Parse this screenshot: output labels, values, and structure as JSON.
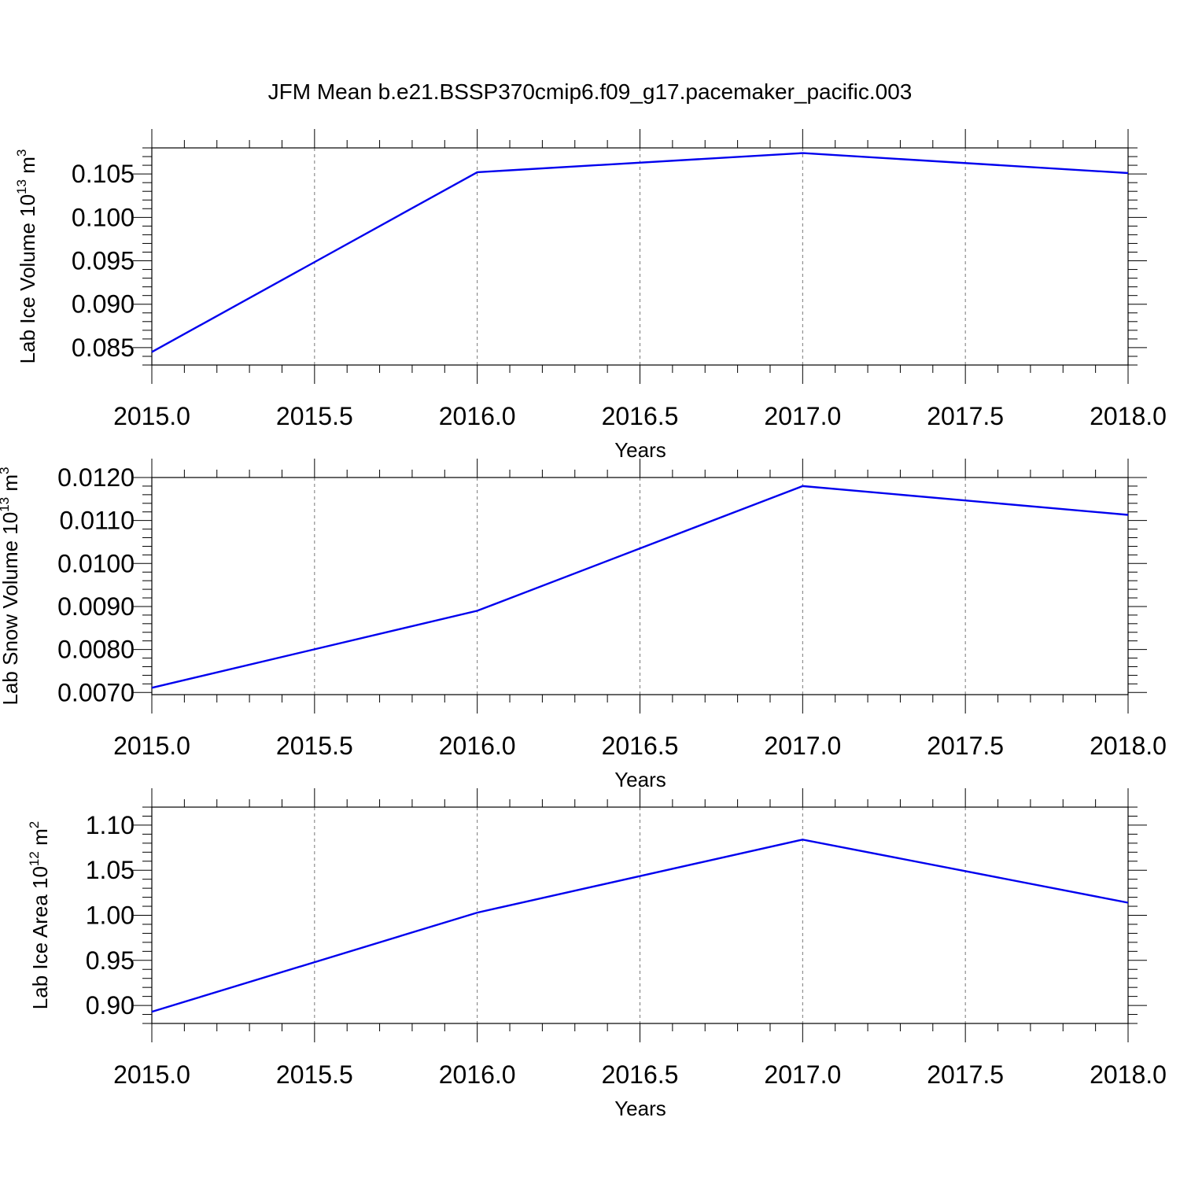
{
  "title": "JFM Mean b.e21.BSSP370cmip6.f09_g17.pacemaker_pacific.003",
  "colors": {
    "series": "#0000ee",
    "grid": "#777777",
    "frame": "#000000"
  },
  "chart_data": [
    {
      "type": "line",
      "xlabel": "Years",
      "ylabel": {
        "main": "Lab Ice Volume 10",
        "exp": "13",
        "unit": " m",
        "unit_exp": "3"
      },
      "xlim": [
        2015.0,
        2018.0
      ],
      "ylim": [
        0.083,
        0.108
      ],
      "x_ticks": [
        "2015.0",
        "2015.5",
        "2016.0",
        "2016.5",
        "2017.0",
        "2017.5",
        "2018.0"
      ],
      "y_ticks": [
        "0.085",
        "0.090",
        "0.095",
        "0.100",
        "0.105"
      ],
      "y_tick_values": [
        0.085,
        0.09,
        0.095,
        0.1,
        0.105
      ],
      "y_minor_step": 0.001,
      "grid": "vertical dashed at major x ticks",
      "x": [
        2015,
        2016,
        2017,
        2018
      ],
      "y": [
        0.0845,
        0.1052,
        0.1074,
        0.1051
      ]
    },
    {
      "type": "line",
      "xlabel": "Years",
      "ylabel": {
        "main": "Lab Snow Volume 10",
        "exp": "13",
        "unit": " m",
        "unit_exp": "3"
      },
      "xlim": [
        2015.0,
        2018.0
      ],
      "ylim": [
        0.00695,
        0.012
      ],
      "x_ticks": [
        "2015.0",
        "2015.5",
        "2016.0",
        "2016.5",
        "2017.0",
        "2017.5",
        "2018.0"
      ],
      "y_ticks": [
        "0.0070",
        "0.0080",
        "0.0090",
        "0.0100",
        "0.0110",
        "0.0120"
      ],
      "y_tick_values": [
        0.007,
        0.008,
        0.009,
        0.01,
        0.011,
        0.012
      ],
      "y_minor_step": 0.0002,
      "grid": "vertical dashed at major x ticks",
      "x": [
        2015,
        2016,
        2017,
        2018
      ],
      "y": [
        0.00711,
        0.0089,
        0.0118,
        0.01113
      ]
    },
    {
      "type": "line",
      "xlabel": "Years",
      "ylabel": {
        "main": "Lab Ice Area 10",
        "exp": "12",
        "unit": " m",
        "unit_exp": "2"
      },
      "xlim": [
        2015.0,
        2018.0
      ],
      "ylim": [
        0.88,
        1.12
      ],
      "x_ticks": [
        "2015.0",
        "2015.5",
        "2016.0",
        "2016.5",
        "2017.0",
        "2017.5",
        "2018.0"
      ],
      "y_ticks": [
        "0.90",
        "0.95",
        "1.00",
        "1.05",
        "1.10"
      ],
      "y_tick_values": [
        0.9,
        0.95,
        1.0,
        1.05,
        1.1
      ],
      "y_minor_step": 0.01,
      "grid": "vertical dashed at major x ticks",
      "x": [
        2015,
        2016,
        2017,
        2018
      ],
      "y": [
        0.893,
        1.003,
        1.084,
        1.014
      ]
    }
  ]
}
